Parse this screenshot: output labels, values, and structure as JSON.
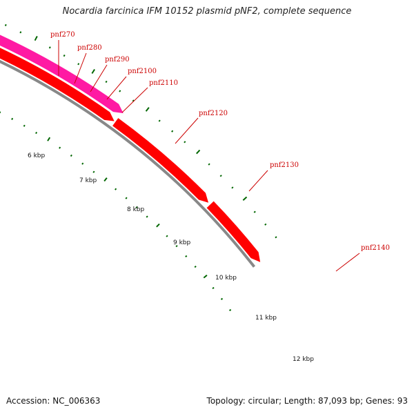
{
  "title": "Nocardia farcinica IFM 10152 plasmid pNF2, complete sequence",
  "footer": {
    "accession": "Accession: NC_006363",
    "summary": "Topology: circular; Length: 87,093 bp; Genes: 93"
  },
  "colors": {
    "backbone": "#888888",
    "gene_default": "#ff0000",
    "gene_green": "#99ff33",
    "gene_magenta": "#ff1aa3",
    "gene_blue": "#0000ff",
    "gene_orange": "#ff8c00",
    "tick": "#006600",
    "label": "#cc0000"
  },
  "ticks": [
    {
      "label": "6 kbp"
    },
    {
      "label": "7 kbp"
    },
    {
      "label": "8 kbp"
    },
    {
      "label": "9 kbp"
    },
    {
      "label": "10 kbp"
    },
    {
      "label": "11 kbp"
    },
    {
      "label": "12 kbp"
    }
  ],
  "gene_labels": [
    {
      "name": "pnf270"
    },
    {
      "name": "pnf280"
    },
    {
      "name": "pnf290"
    },
    {
      "name": "pnf2100"
    },
    {
      "name": "pnf2110"
    },
    {
      "name": "pnf2120"
    },
    {
      "name": "pnf2130"
    },
    {
      "name": "pnf2140"
    }
  ]
}
